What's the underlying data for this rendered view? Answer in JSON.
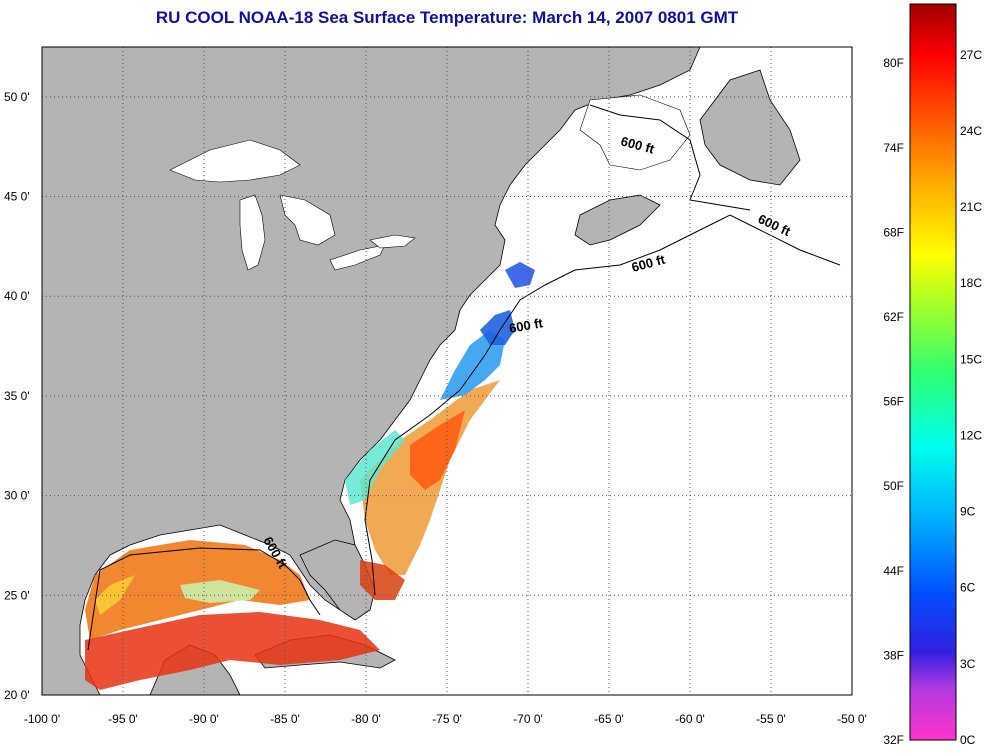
{
  "title": "RU COOL  NOAA-18  Sea Surface Temperature:  March 14, 2007 0801 GMT",
  "map": {
    "lon_range": [
      -100,
      -50
    ],
    "lat_range": [
      20,
      52.5
    ],
    "lon_ticks": [
      "-100 0'",
      "-95 0'",
      "-90 0'",
      "-85 0'",
      "-80 0'",
      "-75 0'",
      "-70 0'",
      "-65 0'",
      "-60 0'",
      "-55 0'",
      "-50 0'"
    ],
    "lat_ticks": [
      "50 0'",
      "45 0'",
      "40 0'",
      "35 0'",
      "30 0'",
      "25 0'",
      "20 0'"
    ],
    "grid": "dotted",
    "land_color": "#b4b4b4",
    "ocean_color": "#ffffff"
  },
  "contours": {
    "label": "600 ft",
    "labels": [
      "600 ft",
      "600 ft",
      "600 ft",
      "600 ft",
      "600 ft"
    ]
  },
  "colorbar": {
    "fahrenheit_labels": [
      "80F",
      "74F",
      "68F",
      "62F",
      "56F",
      "50F",
      "44F",
      "38F",
      "32F"
    ],
    "celsius_labels": [
      "27C",
      "24C",
      "21C",
      "18C",
      "15C",
      "12C",
      "9C",
      "6C",
      "3C",
      "0C"
    ],
    "range_celsius": [
      0,
      29
    ],
    "colors": [
      "#ff33cc",
      "#8a2be2",
      "#0000ff",
      "#00aaff",
      "#00ffff",
      "#33ff66",
      "#ccff00",
      "#ffff00",
      "#ffaa00",
      "#ff6600",
      "#ff0000",
      "#990000"
    ]
  }
}
